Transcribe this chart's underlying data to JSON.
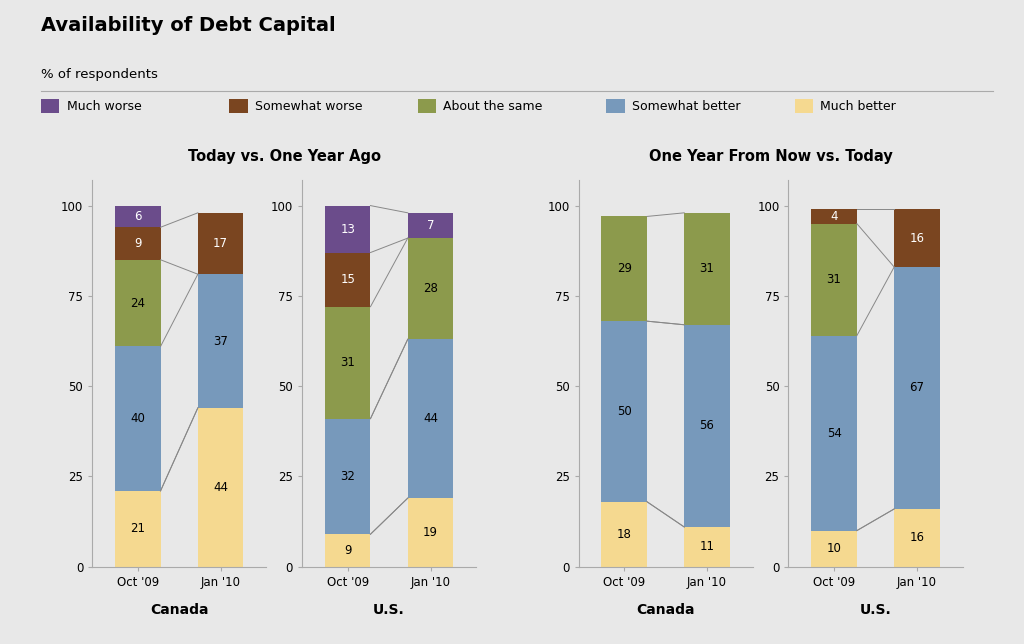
{
  "title": "Availability of Debt Capital",
  "subtitle": "% of respondents",
  "background_color": "#e8e8e8",
  "legend_items": [
    "Much worse",
    "Somewhat worse",
    "About the same",
    "Somewhat better",
    "Much better"
  ],
  "colors": {
    "much_worse": "#6b4c8b",
    "somewhat_worse": "#7a4520",
    "about_same": "#8c9a4c",
    "somewhat_better": "#7799bb",
    "much_better": "#f5d990"
  },
  "sections": [
    {
      "title": "Today vs. One Year Ago",
      "groups": [
        {
          "label": "Canada",
          "bars": [
            {
              "x_label": "Oct '09",
              "much_worse": 6,
              "somewhat_worse": 9,
              "about_same": 24,
              "somewhat_better": 40,
              "much_better": 21
            },
            {
              "x_label": "Jan '10",
              "much_worse": 0,
              "somewhat_worse": 17,
              "about_same": 0,
              "somewhat_better": 37,
              "much_better": 44
            }
          ]
        },
        {
          "label": "U.S.",
          "bars": [
            {
              "x_label": "Oct '09",
              "much_worse": 13,
              "somewhat_worse": 15,
              "about_same": 31,
              "somewhat_better": 32,
              "much_better": 9
            },
            {
              "x_label": "Jan '10",
              "much_worse": 7,
              "somewhat_worse": 0,
              "about_same": 28,
              "somewhat_better": 44,
              "much_better": 19
            }
          ]
        }
      ]
    },
    {
      "title": "One Year From Now vs. Today",
      "groups": [
        {
          "label": "Canada",
          "bars": [
            {
              "x_label": "Oct '09",
              "much_worse": 0,
              "somewhat_worse": 0,
              "about_same": 29,
              "somewhat_better": 50,
              "much_better": 18
            },
            {
              "x_label": "Jan '10",
              "much_worse": 0,
              "somewhat_worse": 0,
              "about_same": 31,
              "somewhat_better": 56,
              "much_better": 11
            }
          ]
        },
        {
          "label": "U.S.",
          "bars": [
            {
              "x_label": "Oct '09",
              "much_worse": 0,
              "somewhat_worse": 4,
              "about_same": 31,
              "somewhat_better": 54,
              "much_better": 10
            },
            {
              "x_label": "Jan '10",
              "much_worse": 0,
              "somewhat_worse": 16,
              "about_same": 0,
              "somewhat_better": 67,
              "much_better": 16
            }
          ]
        }
      ]
    }
  ],
  "bar_order": [
    "much_better",
    "somewhat_better",
    "about_same",
    "somewhat_worse",
    "much_worse"
  ],
  "text_colors": {
    "much_worse": "white",
    "somewhat_worse": "white",
    "about_same": "black",
    "somewhat_better": "black",
    "much_better": "black"
  },
  "connector_color": "#888888",
  "bar_width": 0.55,
  "yticks": [
    0,
    25,
    50,
    75,
    100
  ],
  "text_fontsize": 8.5
}
